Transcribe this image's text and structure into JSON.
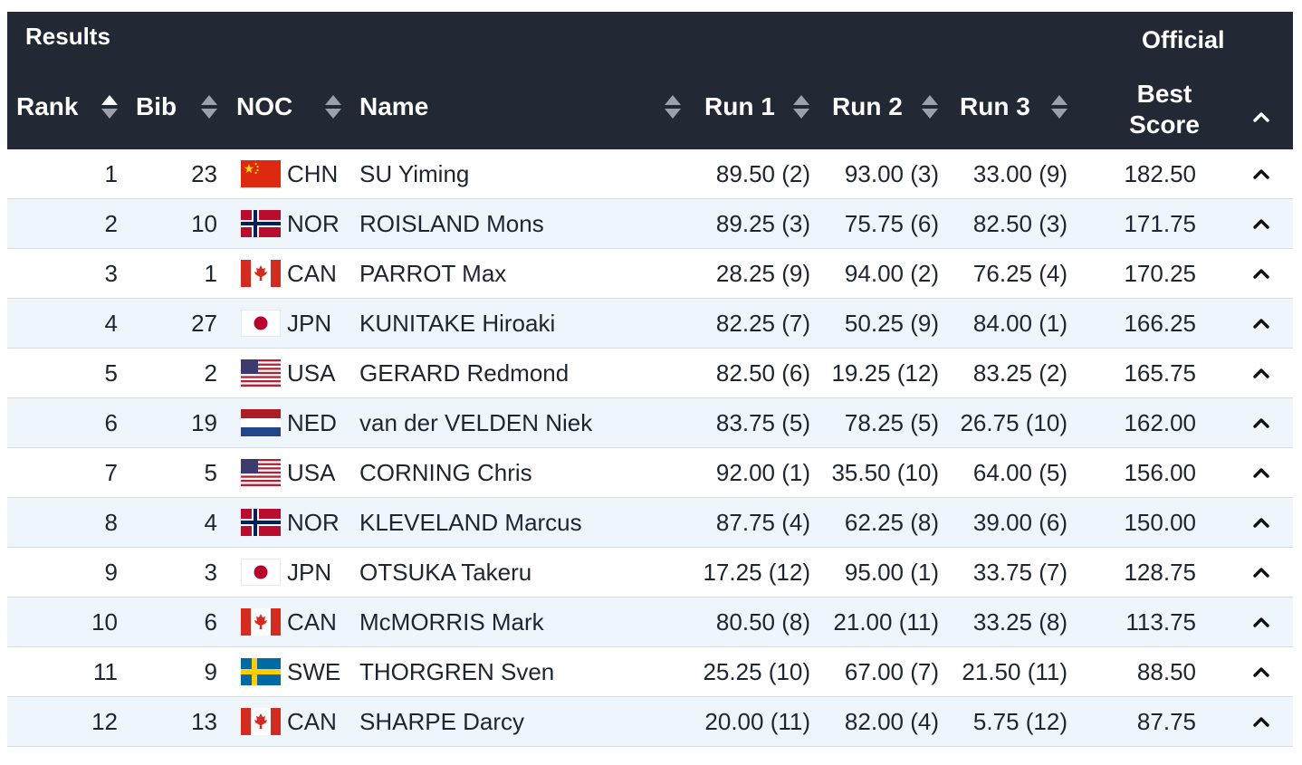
{
  "header": {
    "title": "Results",
    "status": "Official",
    "columns": {
      "rank": "Rank",
      "bib": "Bib",
      "noc": "NOC",
      "name": "Name",
      "run1": "Run 1",
      "run2": "Run 2",
      "run3": "Run 3",
      "best_line1": "Best",
      "best_line2": "Score"
    }
  },
  "rows": [
    {
      "rank": "1",
      "bib": "23",
      "flag": "china-flag-icon",
      "noc": "CHN",
      "name": "SU Yiming",
      "run1": "89.50 (2)",
      "run2": "93.00 (3)",
      "run3": "33.00 (9)",
      "best": "182.50"
    },
    {
      "rank": "2",
      "bib": "10",
      "flag": "norway-flag-icon",
      "noc": "NOR",
      "name": "ROISLAND Mons",
      "run1": "89.25 (3)",
      "run2": "75.75 (6)",
      "run3": "82.50 (3)",
      "best": "171.75"
    },
    {
      "rank": "3",
      "bib": "1",
      "flag": "canada-flag-icon",
      "noc": "CAN",
      "name": "PARROT Max",
      "run1": "28.25 (9)",
      "run2": "94.00 (2)",
      "run3": "76.25 (4)",
      "best": "170.25"
    },
    {
      "rank": "4",
      "bib": "27",
      "flag": "japan-flag-icon",
      "noc": "JPN",
      "name": "KUNITAKE Hiroaki",
      "run1": "82.25 (7)",
      "run2": "50.25 (9)",
      "run3": "84.00 (1)",
      "best": "166.25"
    },
    {
      "rank": "5",
      "bib": "2",
      "flag": "usa-flag-icon",
      "noc": "USA",
      "name": "GERARD Redmond",
      "run1": "82.50 (6)",
      "run2": "19.25 (12)",
      "run3": "83.25 (2)",
      "best": "165.75"
    },
    {
      "rank": "6",
      "bib": "19",
      "flag": "netherlands-flag-icon",
      "noc": "NED",
      "name": "van der VELDEN Niek",
      "run1": "83.75 (5)",
      "run2": "78.25 (5)",
      "run3": "26.75 (10)",
      "best": "162.00"
    },
    {
      "rank": "7",
      "bib": "5",
      "flag": "usa-flag-icon",
      "noc": "USA",
      "name": "CORNING Chris",
      "run1": "92.00 (1)",
      "run2": "35.50 (10)",
      "run3": "64.00 (5)",
      "best": "156.00"
    },
    {
      "rank": "8",
      "bib": "4",
      "flag": "norway-flag-icon",
      "noc": "NOR",
      "name": "KLEVELAND Marcus",
      "run1": "87.75 (4)",
      "run2": "62.25 (8)",
      "run3": "39.00 (6)",
      "best": "150.00"
    },
    {
      "rank": "9",
      "bib": "3",
      "flag": "japan-flag-icon",
      "noc": "JPN",
      "name": "OTSUKA Takeru",
      "run1": "17.25 (12)",
      "run2": "95.00 (1)",
      "run3": "33.75 (7)",
      "best": "128.75"
    },
    {
      "rank": "10",
      "bib": "6",
      "flag": "canada-flag-icon",
      "noc": "CAN",
      "name": "McMORRIS Mark",
      "run1": "80.50 (8)",
      "run2": "21.00 (11)",
      "run3": "33.25 (8)",
      "best": "113.75"
    },
    {
      "rank": "11",
      "bib": "9",
      "flag": "sweden-flag-icon",
      "noc": "SWE",
      "name": "THORGREN Sven",
      "run1": "25.25 (10)",
      "run2": "67.00 (7)",
      "run3": "21.50 (11)",
      "best": "88.50"
    },
    {
      "rank": "12",
      "bib": "13",
      "flag": "canada-flag-icon",
      "noc": "CAN",
      "name": "SHARPE Darcy",
      "run1": "20.00 (11)",
      "run2": "82.00 (4)",
      "run3": "5.75 (12)",
      "best": "87.75"
    }
  ],
  "colors": {
    "header_bg": "#222935",
    "row_alt_bg": "#eef6fb",
    "text": "#1e2530",
    "sort_inactive": "#9aa1ac"
  }
}
